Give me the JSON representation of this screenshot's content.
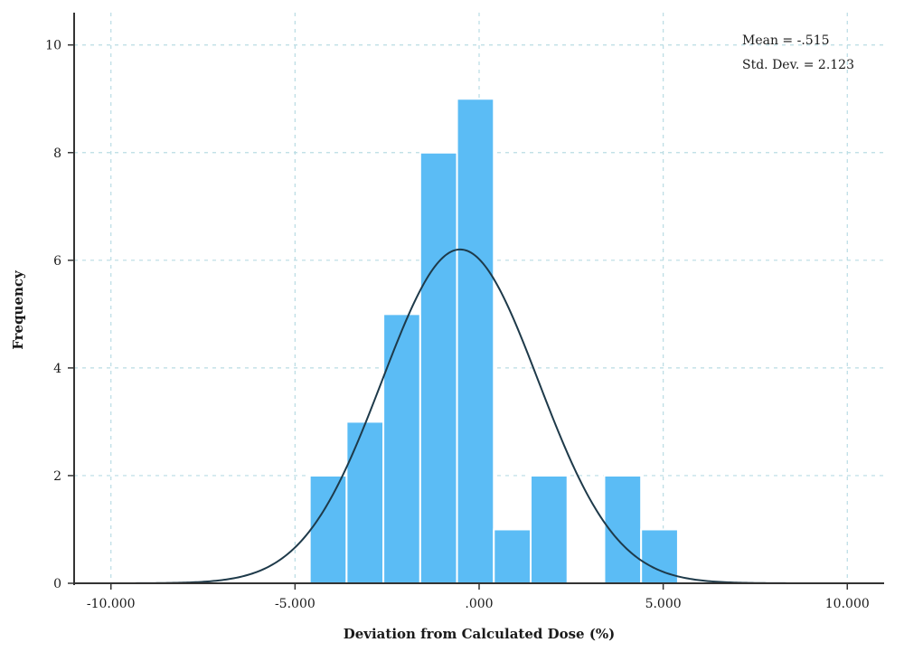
{
  "chart_data": {
    "type": "bar",
    "title": "",
    "xlabel": "Deviation from Calculated Dose (%)",
    "ylabel": "Frequency",
    "xlim": [
      -11.0,
      11.0
    ],
    "ylim": [
      0,
      10.6
    ],
    "x_ticks": [
      -10,
      -5,
      0,
      5,
      10
    ],
    "x_tick_labels": [
      "-10.000",
      "-5.000",
      ".000",
      "5.000",
      "10.000"
    ],
    "y_ticks": [
      0,
      2,
      4,
      6,
      8,
      10
    ],
    "y_tick_labels": [
      "0",
      "2",
      "4",
      "6",
      "8",
      "10"
    ],
    "bin_width": 1.0,
    "bins": [
      {
        "start": -4.6,
        "end": -3.6,
        "count": 2
      },
      {
        "start": -3.6,
        "end": -2.6,
        "count": 3
      },
      {
        "start": -2.6,
        "end": -1.6,
        "count": 5
      },
      {
        "start": -1.6,
        "end": -0.6,
        "count": 8
      },
      {
        "start": -0.6,
        "end": 0.4,
        "count": 9
      },
      {
        "start": 0.4,
        "end": 1.4,
        "count": 1
      },
      {
        "start": 1.4,
        "end": 2.4,
        "count": 2
      },
      {
        "start": 2.4,
        "end": 3.4,
        "count": 0
      },
      {
        "start": 3.4,
        "end": 4.4,
        "count": 2
      },
      {
        "start": 4.4,
        "end": 5.4,
        "count": 1
      }
    ],
    "normal_curve": {
      "mean": -0.515,
      "std_dev": 2.123,
      "n": 33
    },
    "grid": true,
    "stats": {
      "mean_label": "Mean = -.515",
      "std_label": "Std. Dev. = 2.123"
    },
    "colors": {
      "bar": "#5bbcf5",
      "bar_edge": "#ffffff",
      "curve": "#1e3a4a",
      "grid": "#b9dce4",
      "axis": "#333333"
    }
  }
}
